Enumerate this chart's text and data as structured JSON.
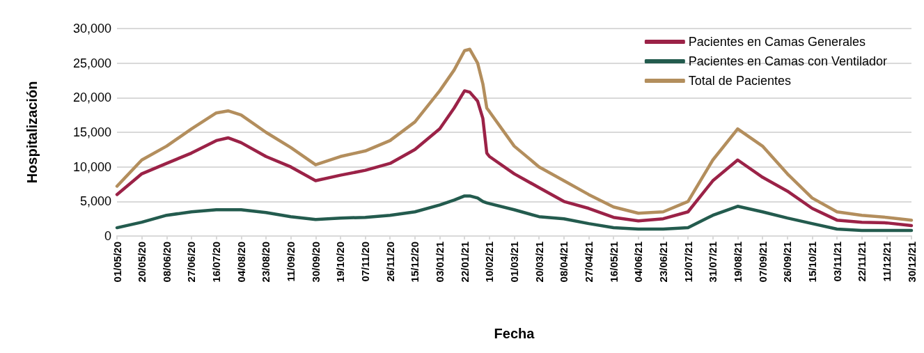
{
  "chart_data": {
    "type": "line",
    "xlabel": "Fecha",
    "ylabel": "Hospitalización",
    "x": [
      "2020-05-01",
      "2020-05-20",
      "2020-06-08",
      "2020-06-27",
      "2020-07-16",
      "2020-07-25",
      "2020-08-04",
      "2020-08-23",
      "2020-09-11",
      "2020-09-30",
      "2020-10-19",
      "2020-11-07",
      "2020-11-26",
      "2020-12-15",
      "2021-01-03",
      "2021-01-14",
      "2021-01-22",
      "2021-01-26",
      "2021-02-01",
      "2021-02-05",
      "2021-02-08",
      "2021-02-10",
      "2021-03-01",
      "2021-03-20",
      "2021-04-08",
      "2021-04-27",
      "2021-05-16",
      "2021-06-04",
      "2021-06-23",
      "2021-07-12",
      "2021-07-31",
      "2021-08-19",
      "2021-09-07",
      "2021-09-26",
      "2021-10-15",
      "2021-11-03",
      "2021-11-22",
      "2021-12-11",
      "2021-12-30"
    ],
    "series": [
      {
        "name": "Pacientes en Camas Generales",
        "color": "#9b2247",
        "values": [
          6000,
          9000,
          10500,
          12000,
          13800,
          14200,
          13500,
          11500,
          10000,
          8000,
          8800,
          9500,
          10500,
          12500,
          15500,
          18500,
          21000,
          20800,
          19500,
          17000,
          12000,
          11500,
          9000,
          7000,
          5000,
          4000,
          2700,
          2200,
          2500,
          3500,
          8000,
          11000,
          8500,
          6500,
          4000,
          2300,
          2000,
          1900,
          1500
        ]
      },
      {
        "name": "Pacientes en Camas con Ventilador",
        "color": "#235b4e",
        "values": [
          1200,
          2000,
          3000,
          3500,
          3800,
          3800,
          3800,
          3400,
          2800,
          2400,
          2600,
          2700,
          3000,
          3500,
          4500,
          5200,
          5800,
          5800,
          5500,
          5000,
          4800,
          4700,
          3800,
          2800,
          2500,
          1800,
          1200,
          1000,
          1000,
          1200,
          3000,
          4300,
          3500,
          2600,
          1800,
          1000,
          800,
          800,
          800
        ]
      },
      {
        "name": "Total de Pacientes",
        "color": "#b38e5d",
        "values": [
          7200,
          11000,
          13000,
          15500,
          17800,
          18100,
          17500,
          15000,
          12800,
          10300,
          11500,
          12300,
          13800,
          16500,
          21000,
          24000,
          26800,
          27000,
          25000,
          22000,
          18500,
          18000,
          13000,
          10000,
          8000,
          6000,
          4200,
          3300,
          3500,
          5000,
          11000,
          15500,
          13000,
          9000,
          5500,
          3500,
          3000,
          2700,
          2300
        ]
      }
    ],
    "xlim": [
      "2020-05-01",
      "2021-12-30"
    ],
    "xticks": [
      {
        "value": "2020-05-01",
        "label": "01/05/20"
      },
      {
        "value": "2020-05-20",
        "label": "20/05/20"
      },
      {
        "value": "2020-06-08",
        "label": "08/06/20"
      },
      {
        "value": "2020-06-27",
        "label": "27/06/20"
      },
      {
        "value": "2020-07-16",
        "label": "16/07/20"
      },
      {
        "value": "2020-08-04",
        "label": "04/08/20"
      },
      {
        "value": "2020-08-23",
        "label": "23/08/20"
      },
      {
        "value": "2020-09-11",
        "label": "11/09/20"
      },
      {
        "value": "2020-09-30",
        "label": "30/09/20"
      },
      {
        "value": "2020-10-19",
        "label": "19/10/20"
      },
      {
        "value": "2020-11-07",
        "label": "07/11/20"
      },
      {
        "value": "2020-11-26",
        "label": "26/11/20"
      },
      {
        "value": "2020-12-15",
        "label": "15/12/20"
      },
      {
        "value": "2021-01-03",
        "label": "03/01/21"
      },
      {
        "value": "2021-01-22",
        "label": "22/01/21"
      },
      {
        "value": "2021-02-10",
        "label": "10/02/21"
      },
      {
        "value": "2021-03-01",
        "label": "01/03/21"
      },
      {
        "value": "2021-03-20",
        "label": "20/03/21"
      },
      {
        "value": "2021-04-08",
        "label": "08/04/21"
      },
      {
        "value": "2021-04-27",
        "label": "27/04/21"
      },
      {
        "value": "2021-05-16",
        "label": "16/05/21"
      },
      {
        "value": "2021-06-04",
        "label": "04/06/21"
      },
      {
        "value": "2021-06-23",
        "label": "23/06/21"
      },
      {
        "value": "2021-07-12",
        "label": "12/07/21"
      },
      {
        "value": "2021-07-31",
        "label": "31/07/21"
      },
      {
        "value": "2021-08-19",
        "label": "19/08/21"
      },
      {
        "value": "2021-09-07",
        "label": "07/09/21"
      },
      {
        "value": "2021-09-26",
        "label": "26/09/21"
      },
      {
        "value": "2021-10-15",
        "label": "15/10/21"
      },
      {
        "value": "2021-11-03",
        "label": "03/11/21"
      },
      {
        "value": "2021-11-22",
        "label": "22/11/21"
      },
      {
        "value": "2021-12-11",
        "label": "11/12/21"
      },
      {
        "value": "2021-12-30",
        "label": "30/12/21"
      }
    ],
    "ylim": [
      0,
      30000
    ],
    "yticks": [
      {
        "value": 0,
        "label": "0"
      },
      {
        "value": 5000,
        "label": "5,000"
      },
      {
        "value": 10000,
        "label": "10,000"
      },
      {
        "value": 15000,
        "label": "15,000"
      },
      {
        "value": 20000,
        "label": "20,000"
      },
      {
        "value": 25000,
        "label": "25,000"
      },
      {
        "value": 30000,
        "label": "30,000"
      }
    ],
    "grid": "y",
    "legend": "top right",
    "marker": "none",
    "line_style": "solid"
  }
}
